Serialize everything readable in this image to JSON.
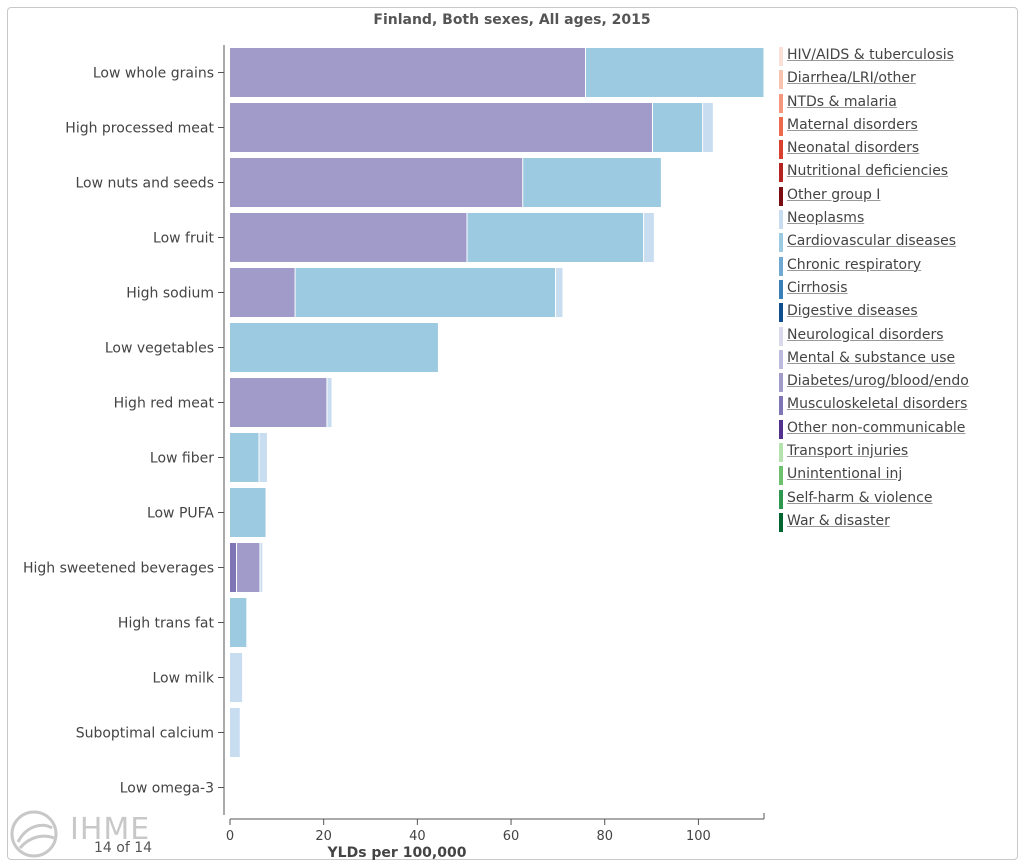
{
  "title": "Finland, Both sexes, All ages, 2015",
  "page_indicator": "14 of 14",
  "logo_text": "IHME",
  "legend": [
    {
      "label": "HIV/AIDS & tuberculosis",
      "color": "#fbe0d8"
    },
    {
      "label": "Diarrhea/LRI/other",
      "color": "#f8c4b0"
    },
    {
      "label": "NTDs & malaria",
      "color": "#f4977d"
    },
    {
      "label": "Maternal disorders",
      "color": "#ee6a4f"
    },
    {
      "label": "Neonatal disorders",
      "color": "#d9402e"
    },
    {
      "label": "Nutritional deficiencies",
      "color": "#b42422"
    },
    {
      "label": "Other group I",
      "color": "#7a0d12"
    },
    {
      "label": "Neoplasms",
      "color": "#c9ddf0"
    },
    {
      "label": "Cardiovascular diseases",
      "color": "#9ccae0"
    },
    {
      "label": "Chronic respiratory",
      "color": "#6fa9d2"
    },
    {
      "label": "Cirrhosis",
      "color": "#3a7fb8"
    },
    {
      "label": "Digestive diseases",
      "color": "#0e4f8f"
    },
    {
      "label": "Neurological disorders",
      "color": "#dad9ec"
    },
    {
      "label": "Mental & substance use",
      "color": "#bcbbdd"
    },
    {
      "label": "Diabetes/urog/blood/endo",
      "color": "#a09bc8"
    },
    {
      "label": "Musculoskeletal disorders",
      "color": "#7e75b4"
    },
    {
      "label": "Other non-communicable",
      "color": "#53318f"
    },
    {
      "label": "Transport injuries",
      "color": "#b6e2b0"
    },
    {
      "label": "Unintentional inj",
      "color": "#6cc06e"
    },
    {
      "label": "Self-harm & violence",
      "color": "#2e9850"
    },
    {
      "label": "War & disaster",
      "color": "#00662f"
    }
  ],
  "chart_data": {
    "type": "bar",
    "orientation": "horizontal",
    "stacked": true,
    "xlabel": "YLDs per 100,000",
    "xlim": [
      0,
      114
    ],
    "xticks": [
      0,
      20,
      40,
      60,
      80,
      100
    ],
    "categories": [
      "Low whole grains",
      "High processed meat",
      "Low nuts and seeds",
      "Low fruit",
      "High sodium",
      "Low vegetables",
      "High red meat",
      "Low fiber",
      "Low PUFA",
      "High sweetened beverages",
      "High trans fat",
      "Low milk",
      "Suboptimal calcium",
      "Low omega-3"
    ],
    "series": [
      {
        "name": "Musculoskeletal disorders",
        "color": "#7e75b4",
        "values": [
          0,
          0,
          0,
          0,
          0,
          0,
          0,
          0,
          0,
          1.5,
          0,
          0,
          0,
          0
        ]
      },
      {
        "name": "Diabetes/urog/blood/endo",
        "color": "#a09bc8",
        "values": [
          76.0,
          90.3,
          62.6,
          50.7,
          14.0,
          0,
          20.8,
          0,
          0,
          5.0,
          0,
          0,
          0,
          0
        ]
      },
      {
        "name": "Cardiovascular diseases",
        "color": "#9ccae0",
        "values": [
          38.1,
          10.7,
          29.6,
          37.7,
          55.6,
          44.6,
          0,
          6.3,
          7.8,
          0,
          3.7,
          0,
          0,
          0
        ]
      },
      {
        "name": "Neoplasms",
        "color": "#c9ddf0",
        "values": [
          0,
          2.3,
          0,
          2.3,
          1.6,
          0,
          1.1,
          1.8,
          0,
          0.6,
          0,
          2.8,
          2.3,
          0
        ]
      }
    ]
  }
}
